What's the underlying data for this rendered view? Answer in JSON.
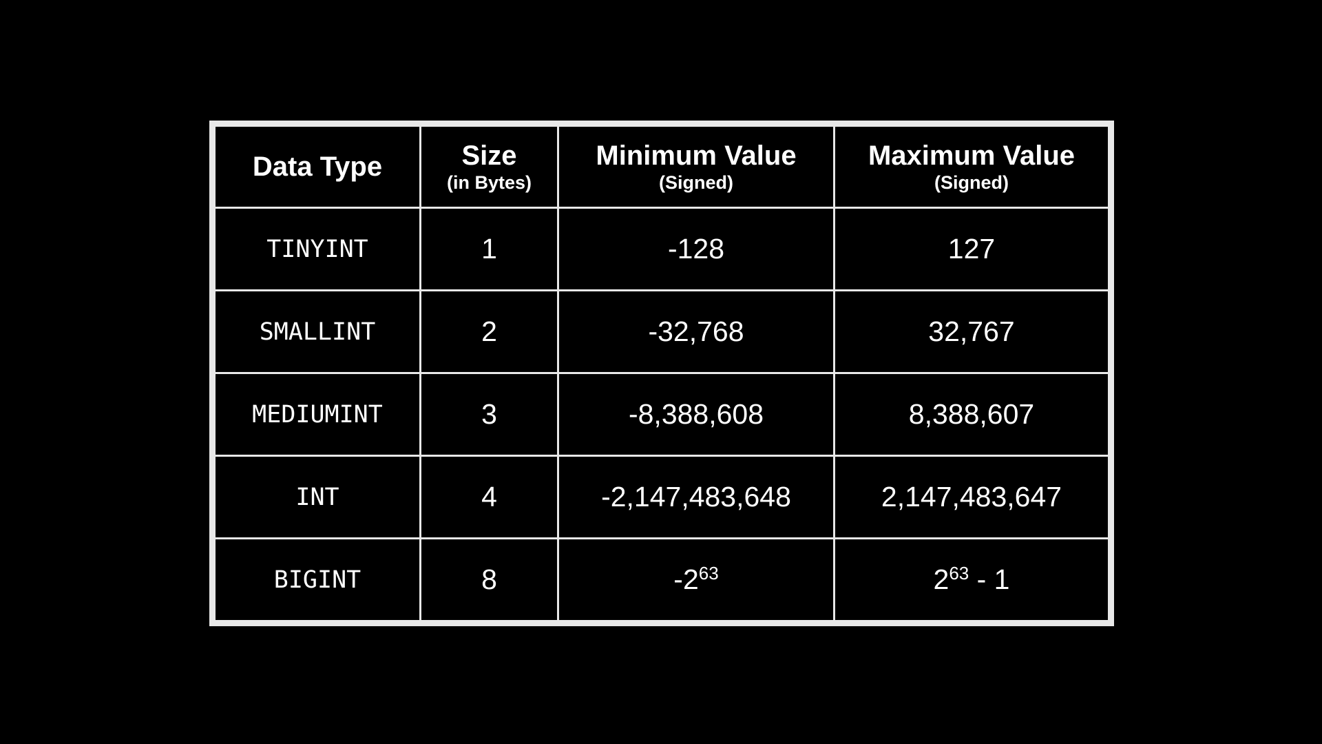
{
  "headers": [
    {
      "title": "Data Type",
      "sub": ""
    },
    {
      "title": "Size",
      "sub": "(in Bytes)"
    },
    {
      "title": "Minimum Value",
      "sub": "(Signed)"
    },
    {
      "title": "Maximum Value",
      "sub": "(Signed)"
    }
  ],
  "rows": [
    {
      "type": "TINYINT",
      "size": "1",
      "min": "-128",
      "max": "127"
    },
    {
      "type": "SMALLINT",
      "size": "2",
      "min": "-32,768",
      "max": "32,767"
    },
    {
      "type": "MEDIUMINT",
      "size": "3",
      "min": "-8,388,608",
      "max": "8,388,607"
    },
    {
      "type": "INT",
      "size": "4",
      "min": "-2,147,483,648",
      "max": "2,147,483,647"
    },
    {
      "type": "BIGINT",
      "size": "8",
      "min_base": "-2",
      "min_exp": "63",
      "max_base": "2",
      "max_exp": "63",
      "max_suffix": " - 1"
    }
  ]
}
